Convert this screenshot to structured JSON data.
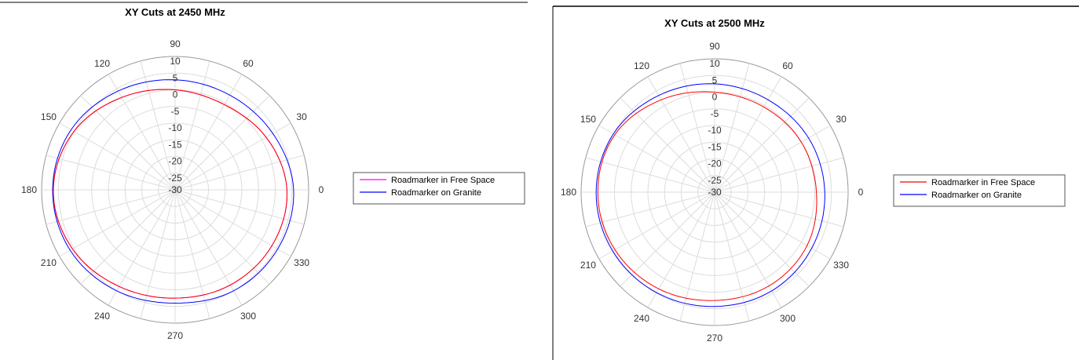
{
  "chart_data": [
    {
      "type": "polar",
      "title": "XY Cuts at 2450 MHz",
      "r_ticks": [
        "10",
        "5",
        "0",
        "-5",
        "-10",
        "-15",
        "-20",
        "-25",
        "-30"
      ],
      "r_ticks_values": [
        10,
        5,
        0,
        -5,
        -10,
        -15,
        -20,
        -25,
        -30
      ],
      "rlim": [
        -30,
        10
      ],
      "theta_ticks": [
        "0",
        "30",
        "60",
        "90",
        "120",
        "150",
        "180",
        "210",
        "240",
        "270",
        "300",
        "330"
      ],
      "theta_ticks_values": [
        0,
        30,
        60,
        90,
        120,
        150,
        180,
        210,
        240,
        270,
        300,
        330
      ],
      "grid": true,
      "legend_position": "right",
      "series": [
        {
          "name": "Roadmarker in Free Space",
          "color": "#ff00ff",
          "theta": [
            0,
            30,
            60,
            90,
            120,
            150,
            180,
            210,
            240,
            270,
            300,
            330,
            360
          ],
          "r": [
            3.5,
            1.5,
            -0.5,
            0.0,
            2.0,
            5.0,
            6.5,
            5.5,
            3.5,
            2.5,
            3.0,
            3.5,
            3.5
          ]
        },
        {
          "name": "Roadmarker on Granite",
          "color": "#0000ff",
          "theta": [
            0,
            30,
            60,
            90,
            120,
            150,
            180,
            210,
            240,
            270,
            300,
            330,
            360
          ],
          "r": [
            5.5,
            3.8,
            2.8,
            3.0,
            4.2,
            6.0,
            6.7,
            6.3,
            5.0,
            4.0,
            5.0,
            5.5,
            5.5
          ]
        },
        {
          "name": "",
          "color": "#ff0000",
          "theta": [
            0,
            30,
            60,
            90,
            120,
            150,
            180,
            210,
            240,
            270,
            300,
            330,
            360
          ],
          "r": [
            3.5,
            1.5,
            -0.5,
            0.0,
            2.0,
            5.0,
            6.5,
            5.5,
            3.5,
            2.5,
            3.0,
            3.5,
            3.5
          ]
        }
      ]
    },
    {
      "type": "polar",
      "title": "XY Cuts at 2500 MHz",
      "r_ticks": [
        "10",
        "5",
        "0",
        "-5",
        "-10",
        "-15",
        "-20",
        "-25",
        "-30"
      ],
      "r_ticks_values": [
        10,
        5,
        0,
        -5,
        -10,
        -15,
        -20,
        -25,
        -30
      ],
      "rlim": [
        -30,
        10
      ],
      "theta_ticks": [
        "0",
        "30",
        "60",
        "90",
        "120",
        "150",
        "180",
        "210",
        "240",
        "270",
        "300",
        "330"
      ],
      "theta_ticks_values": [
        0,
        30,
        60,
        90,
        120,
        150,
        180,
        210,
        240,
        270,
        300,
        330
      ],
      "grid": true,
      "legend_position": "right",
      "series": [
        {
          "name": "Roadmarker in Free Space",
          "color": "#ff0000",
          "theta": [
            0,
            30,
            60,
            90,
            120,
            150,
            180,
            210,
            240,
            270,
            300,
            330,
            360
          ],
          "r": [
            0.5,
            0.0,
            -0.5,
            0.0,
            2.0,
            4.5,
            5.0,
            4.5,
            3.5,
            2.5,
            2.5,
            2.0,
            0.5
          ]
        },
        {
          "name": "Roadmarker on Granite",
          "color": "#0000ff",
          "theta": [
            0,
            30,
            60,
            90,
            120,
            150,
            180,
            210,
            240,
            270,
            300,
            330,
            360
          ],
          "r": [
            3.0,
            2.5,
            2.0,
            2.5,
            3.5,
            5.0,
            5.5,
            5.3,
            4.8,
            4.3,
            4.2,
            3.6,
            3.0
          ]
        }
      ]
    }
  ]
}
